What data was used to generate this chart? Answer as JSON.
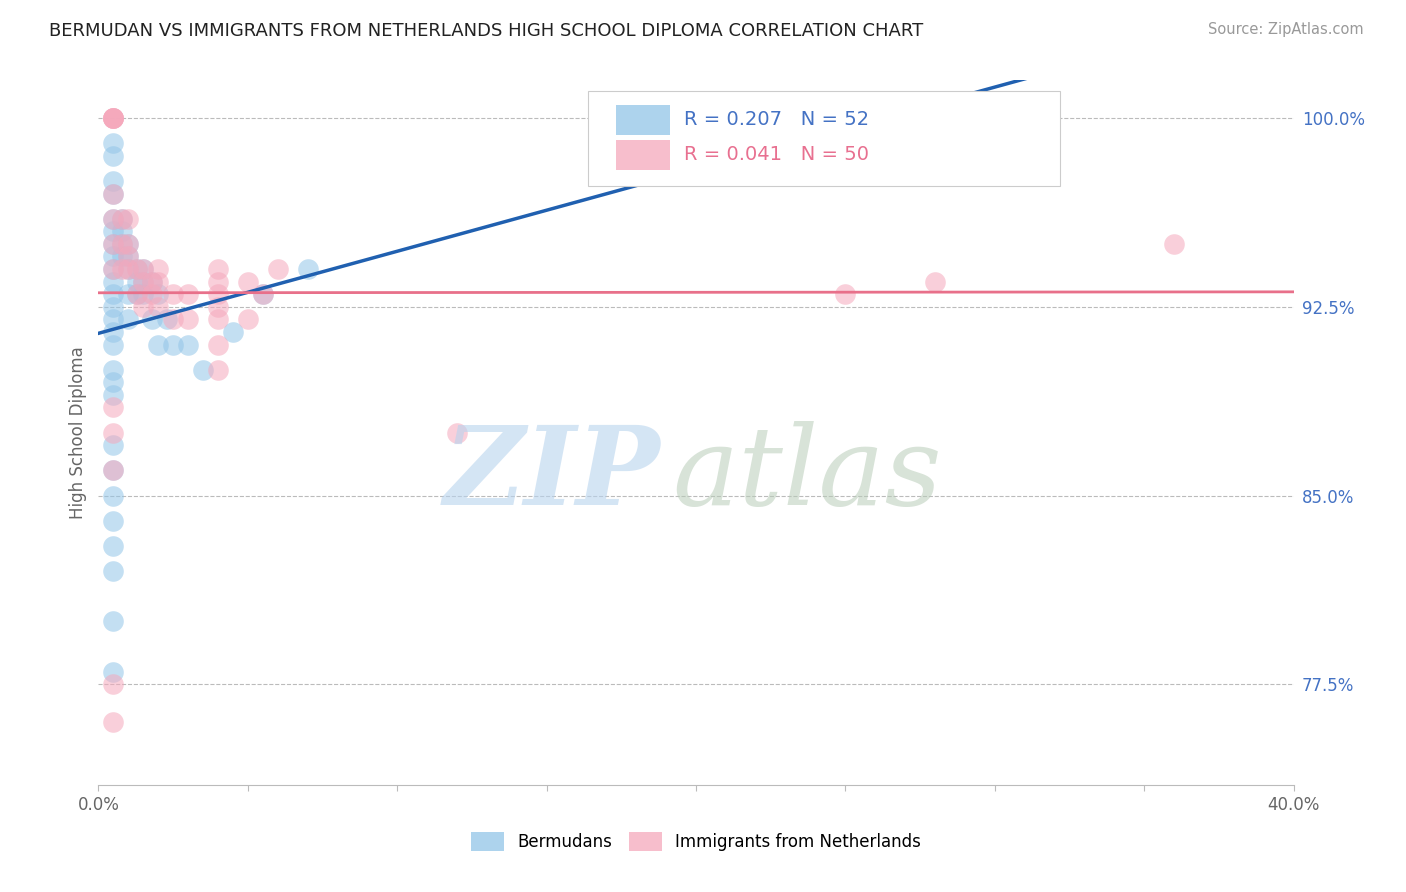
{
  "title": "BERMUDAN VS IMMIGRANTS FROM NETHERLANDS HIGH SCHOOL DIPLOMA CORRELATION CHART",
  "source": "Source: ZipAtlas.com",
  "ylabel": "High School Diploma",
  "xlim": [
    0.0,
    0.4
  ],
  "ylim": [
    0.735,
    1.015
  ],
  "xticks": [
    0.0,
    0.05,
    0.1,
    0.15,
    0.2,
    0.25,
    0.3,
    0.35,
    0.4
  ],
  "xticklabels": [
    "0.0%",
    "",
    "",
    "",
    "",
    "",
    "",
    "",
    "40.0%"
  ],
  "ytick_positions": [
    1.0,
    0.925,
    0.85,
    0.775
  ],
  "yticklabels": [
    "100.0%",
    "92.5%",
    "85.0%",
    "77.5%"
  ],
  "blue_R": 0.207,
  "blue_N": 52,
  "pink_R": 0.041,
  "pink_N": 50,
  "blue_color": "#92C5E8",
  "pink_color": "#F5A8BC",
  "blue_line_color": "#2060B0",
  "pink_line_color": "#E8708A",
  "legend_label_blue": "Bermudans",
  "legend_label_pink": "Immigrants from Netherlands",
  "blue_x": [
    0.005,
    0.005,
    0.005,
    0.005,
    0.005,
    0.005,
    0.005,
    0.005,
    0.005,
    0.005,
    0.005,
    0.005,
    0.005,
    0.005,
    0.005,
    0.005,
    0.005,
    0.005,
    0.008,
    0.008,
    0.008,
    0.008,
    0.01,
    0.01,
    0.01,
    0.01,
    0.01,
    0.013,
    0.013,
    0.013,
    0.015,
    0.015,
    0.015,
    0.018,
    0.018,
    0.02,
    0.02,
    0.023,
    0.025,
    0.03,
    0.035,
    0.045,
    0.055,
    0.07,
    0.005,
    0.005,
    0.005,
    0.005,
    0.005,
    0.005,
    0.005,
    0.005
  ],
  "blue_y": [
    0.99,
    0.985,
    0.975,
    0.97,
    0.96,
    0.955,
    0.95,
    0.945,
    0.94,
    0.935,
    0.93,
    0.925,
    0.92,
    0.915,
    0.91,
    0.9,
    0.895,
    0.89,
    0.96,
    0.955,
    0.95,
    0.945,
    0.95,
    0.945,
    0.94,
    0.93,
    0.92,
    0.94,
    0.935,
    0.93,
    0.94,
    0.935,
    0.93,
    0.935,
    0.92,
    0.93,
    0.91,
    0.92,
    0.91,
    0.91,
    0.9,
    0.915,
    0.93,
    0.94,
    0.87,
    0.86,
    0.85,
    0.84,
    0.83,
    0.82,
    0.8,
    0.78
  ],
  "pink_x": [
    0.005,
    0.005,
    0.005,
    0.005,
    0.005,
    0.005,
    0.005,
    0.005,
    0.005,
    0.008,
    0.008,
    0.008,
    0.01,
    0.01,
    0.01,
    0.01,
    0.013,
    0.013,
    0.015,
    0.015,
    0.015,
    0.018,
    0.018,
    0.02,
    0.02,
    0.02,
    0.025,
    0.025,
    0.03,
    0.03,
    0.04,
    0.04,
    0.04,
    0.04,
    0.04,
    0.04,
    0.04,
    0.05,
    0.05,
    0.055,
    0.06,
    0.12,
    0.25,
    0.28,
    0.36,
    0.005,
    0.005,
    0.005,
    0.005,
    0.005
  ],
  "pink_y": [
    1.0,
    1.0,
    1.0,
    1.0,
    1.0,
    0.97,
    0.96,
    0.95,
    0.94,
    0.96,
    0.95,
    0.94,
    0.96,
    0.95,
    0.945,
    0.94,
    0.94,
    0.93,
    0.94,
    0.935,
    0.925,
    0.935,
    0.93,
    0.94,
    0.935,
    0.925,
    0.93,
    0.92,
    0.93,
    0.92,
    0.94,
    0.935,
    0.93,
    0.925,
    0.92,
    0.91,
    0.9,
    0.935,
    0.92,
    0.93,
    0.94,
    0.875,
    0.93,
    0.935,
    0.95,
    0.885,
    0.875,
    0.86,
    0.775,
    0.76
  ]
}
